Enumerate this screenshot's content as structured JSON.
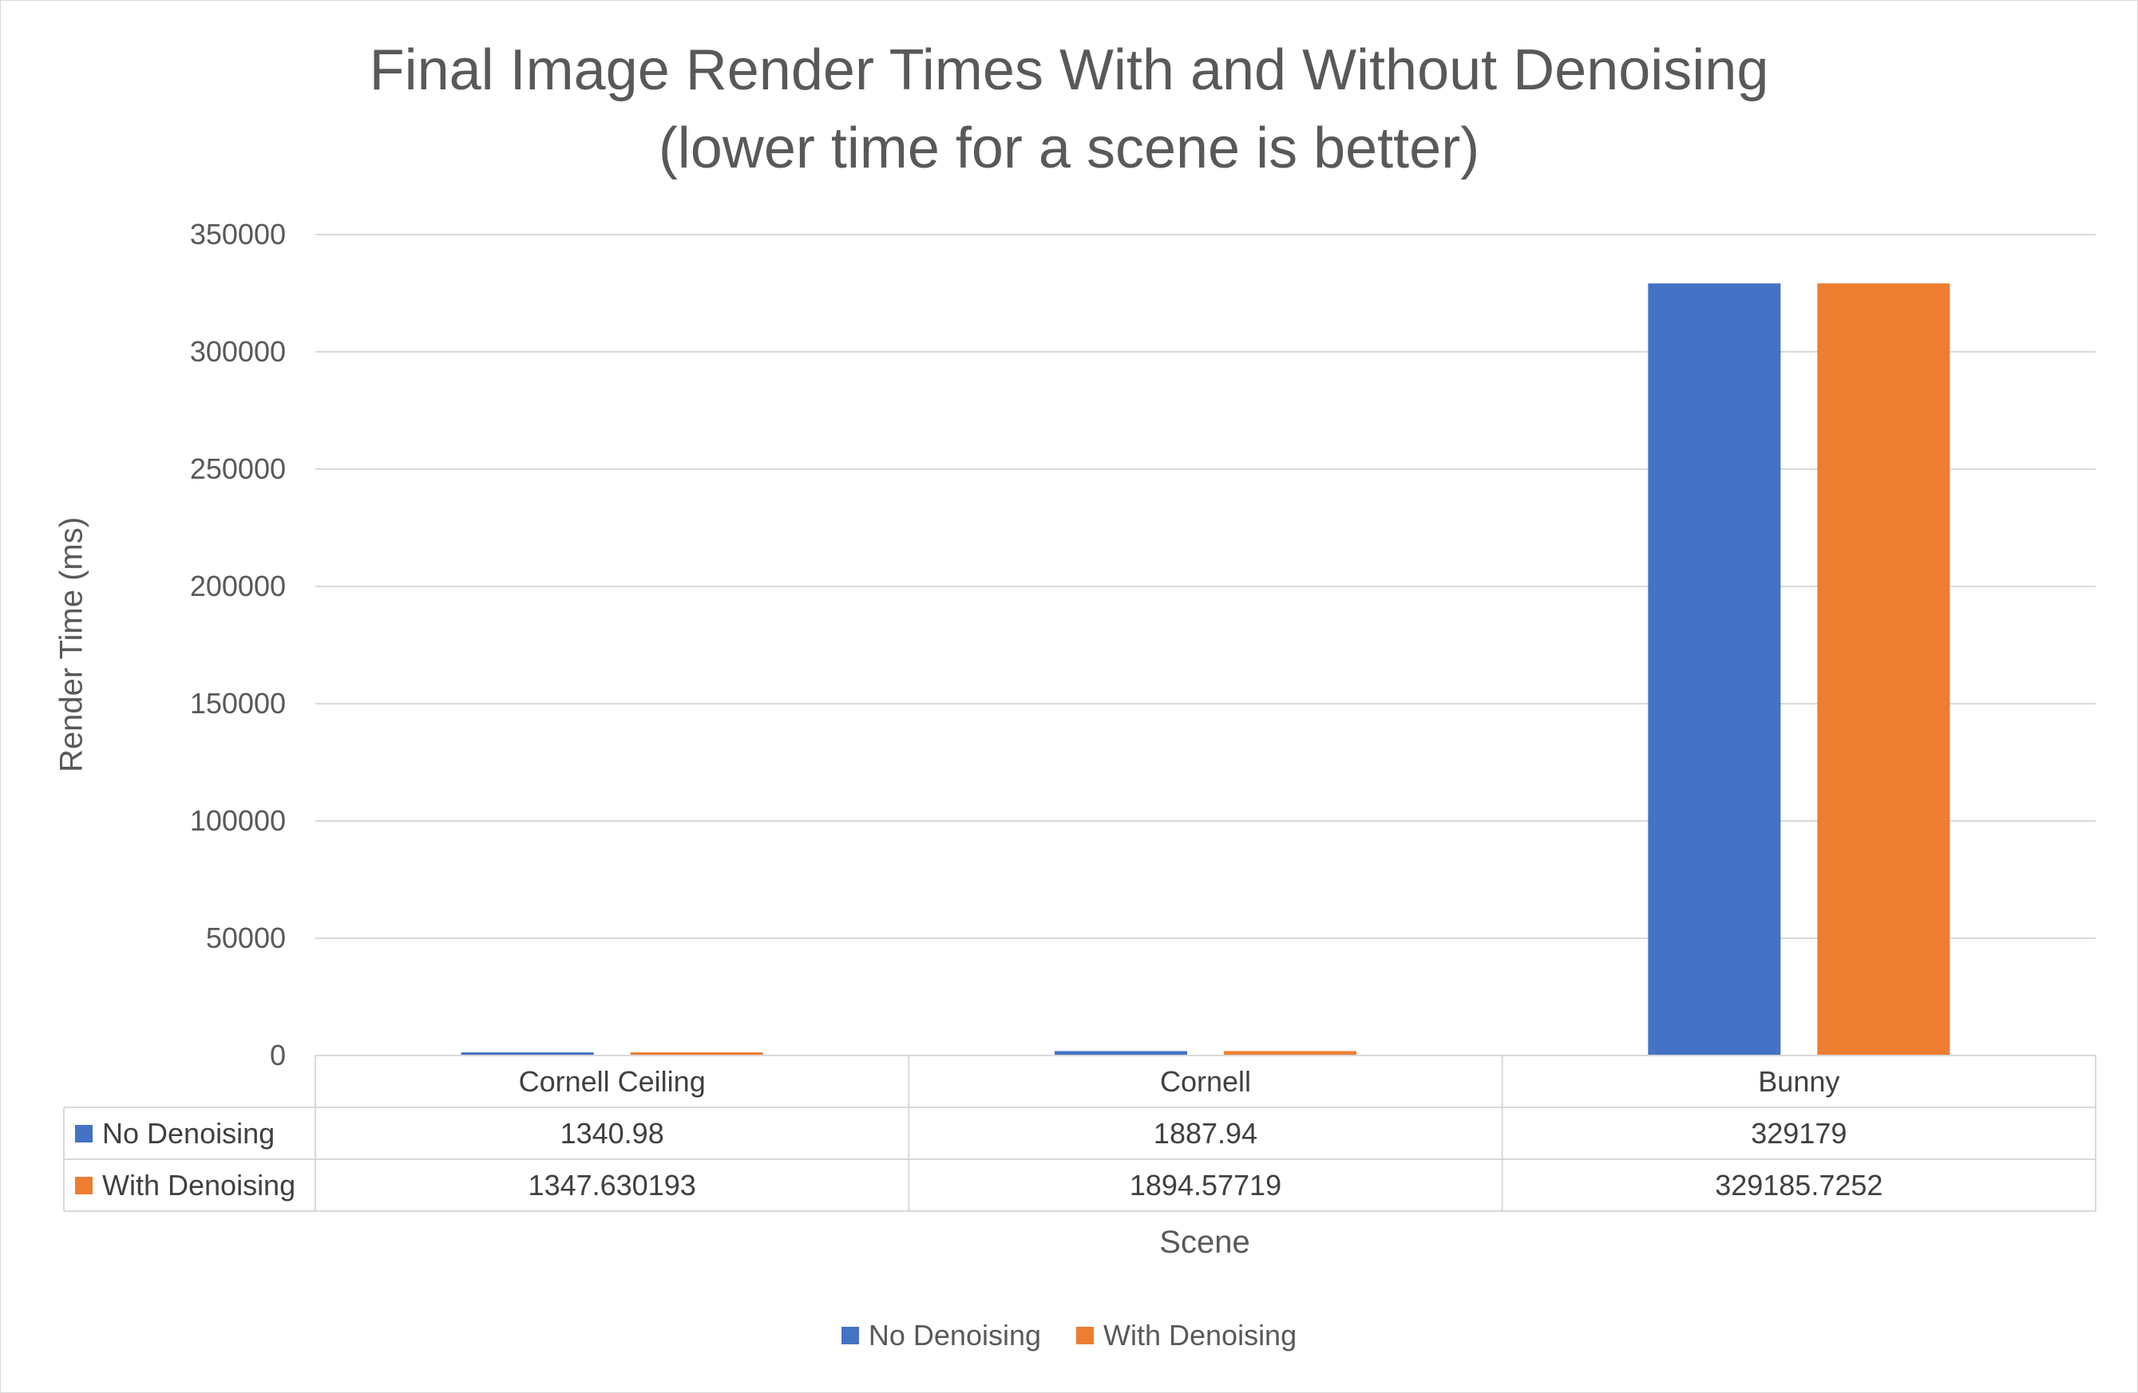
{
  "chart_data": {
    "type": "bar",
    "title": "Final Image Render Times With and Without Denoising",
    "subtitle": "(lower time for a scene is better)",
    "xlabel": "Scene",
    "ylabel": "Render Time (ms)",
    "ylim": [
      0,
      350000
    ],
    "yticks": [
      "0",
      "50000",
      "100000",
      "150000",
      "200000",
      "250000",
      "300000",
      "350000"
    ],
    "categories": [
      "Cornell Ceiling",
      "Cornell",
      "Bunny"
    ],
    "series": [
      {
        "name": "No Denoising",
        "color": "#4472c4",
        "values": [
          1340.98,
          1887.94,
          329179
        ],
        "labels": [
          "1340.98",
          "1887.94",
          "329179"
        ]
      },
      {
        "name": "With Denoising",
        "color": "#ed7d31",
        "values": [
          1347.630193,
          1894.57719,
          329185.7252
        ],
        "labels": [
          "1347.630193",
          "1894.57719",
          "329185.7252"
        ]
      }
    ],
    "grid": true,
    "legend": "bottom",
    "data_table": true
  }
}
